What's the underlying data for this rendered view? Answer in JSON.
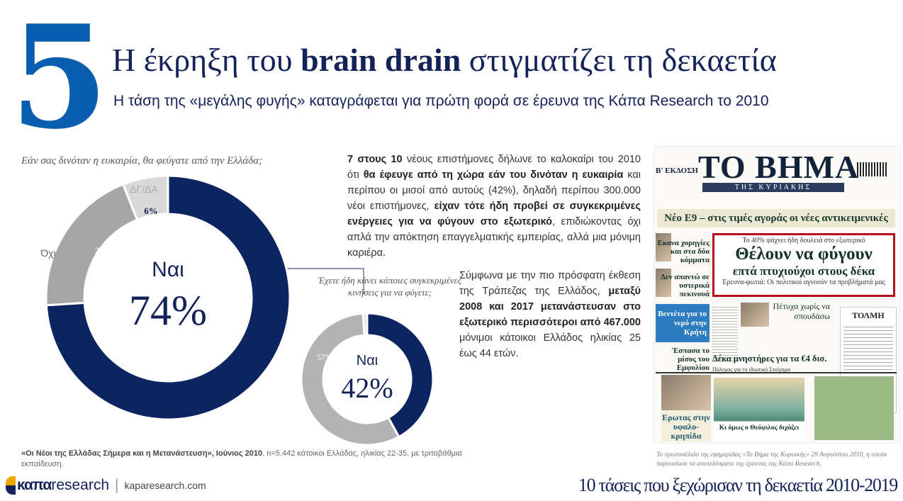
{
  "header": {
    "number": "5",
    "title_pre": "Η έκρηξη του ",
    "title_bold": "brain drain",
    "title_post": " στιγματίζει τη δεκαετία",
    "subtitle": "Η τάση της «μεγάλης φυγής» καταγράφεται για πρώτη φορά σε έρευνα της Κάπα Research το 2010"
  },
  "chart_data": [
    {
      "type": "pie",
      "title": "Εάν σας δινόταν η ευκαιρία, θα φεύγατε από την Ελλάδα;",
      "center_label": "Ναι",
      "center_value": "74%",
      "slices": [
        {
          "label": "Ναι",
          "value": 74,
          "color": "#0c2460",
          "value_label": ""
        },
        {
          "label": "Όχι",
          "value": 20,
          "color": "#a6a6a6",
          "value_label": "20%"
        },
        {
          "label": "ΔΓ/ΔΑ",
          "value": 6,
          "color": "#d9d9d9",
          "value_label": "6%"
        }
      ]
    },
    {
      "type": "pie",
      "title": "Έχετε ήδη κάνει κάποιες συγκεκριμένες κινήσεις για να φύγετε;",
      "center_label": "Ναι",
      "center_value": "42%",
      "slices": [
        {
          "label": "Ναι",
          "value": 42,
          "color": "#0c2460",
          "value_label": ""
        },
        {
          "label": "Όχι",
          "value": 57,
          "color": "#b3b3b3",
          "value_label": "57%"
        },
        {
          "label": "ΔΓ/ΔΑ",
          "value": 1,
          "color": "#e3e3e3",
          "value_label": ""
        }
      ]
    }
  ],
  "paragraph1": [
    {
      "text": "7 στους 10",
      "bold": true
    },
    {
      "text": " νέους επιστήμονες δήλωνε το καλοκαίρι του 2010 ότι ",
      "bold": false
    },
    {
      "text": "θα έφευγε από τη χώρα εάν του δινόταν η ευκαιρία",
      "bold": true
    },
    {
      "text": " και περίπου οι μισοί από αυτούς (42%), δηλαδή περίπου 300.000 νέοι επιστήμονες, ",
      "bold": false
    },
    {
      "text": "είχαν τότε ήδη προβεί σε συγκεκριμένες ενέργειες για να φύγουν στο εξωτερικό",
      "bold": true
    },
    {
      "text": ", επιδιώκοντας όχι απλά την απόκτηση επαγγελματικής εμπειρίας, αλλά μια μόνιμη καριέρα.",
      "bold": false
    }
  ],
  "paragraph2": [
    {
      "text": "Σύμφωνα με την πιο πρόσφατη έκθεση της Τράπεζας της Ελλάδος, ",
      "bold": false
    },
    {
      "text": "μεταξύ 2008 και 2017 μετανάστευσαν στο εξωτερικό περισσότεροι από 467.000",
      "bold": true
    },
    {
      "text": " μόνιμοι κάτοικοι Ελλάδος ηλικίας 25 έως 44 ετών.",
      "bold": false
    }
  ],
  "source": {
    "bold": "«Οι Νέοι της Ελλάδας Σήμερα και η Μετανάστευση», Ιούνιος 2010",
    "rest": ", n=5.442 κάτοικοι Ελλάδας, ηλικίας 22-35, με τριτοβάθμια εκπαίδευση."
  },
  "newspaper": {
    "masthead": "ΤΟ ΒΗΜΑ",
    "sub_masthead": "ΤΗΣ ΚΥΡΙΑΚΗΣ",
    "edition": "Β' ΕΚΔΟΣΗ",
    "banner": "Νέο Ε9 – στις τιμές αγοράς οι νέες αντικειμενικές",
    "kicker": "Το 40% ψάχνει ήδη δουλειά στο εξωτερικό",
    "headline1": "Θέλουν να φύγουν",
    "headline2": "επτά πτυχιούχοι στους δέκα",
    "deck": "Ερευνα-φωτιά: Οι πολιτικοί αγνοούν τα προβλήματά μας",
    "side1": "Εκανα χορηγίες και στα δύο κόμματα",
    "side2": "Δεν απαντώ σε υστερικά πεκινουά",
    "side3": "Βεντέτα για το νερό στην Κρήτη",
    "side4": "Έσπασα το μίσος του Εμφυλίου",
    "story": "Πέτυχα χωρίς να σπουδάσω",
    "tolmi": "ΤΟΛΜΗ",
    "deka": "Δέκα μνηστήρες για τα €4 δισ.",
    "polemos": "Πόλεμος για το ιδιωτικό Στοίχημα",
    "bottom1": "Ερωτας στην υφαλο-κρηπίδα",
    "bottom2": "Κι όμως ο Θεόφιλος διχάζει"
  },
  "caption": "Το πρωτοσέλιδο της εφημερίδας «Το Βήμα της Κυριακής» 29 Αυγούστου 2010, η οποία παρουσίασε τα αποτελέσματα της έρευνας της Κάπα Research.",
  "logo": {
    "brand_bold": "καπα",
    "brand_light": "research",
    "separator": "|",
    "url": "kaparesearch.com"
  },
  "footer": "10 τάσεις που ξεχώρισαν τη δεκαετία 2010-2019"
}
